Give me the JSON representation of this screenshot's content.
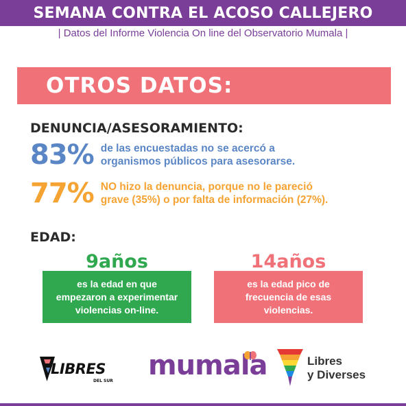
{
  "header": {
    "title": "SEMANA CONTRA EL ACOSO CALLEJERO",
    "subtitle": "| Datos del Informe Violencia On line del Observatorio Mumala |"
  },
  "otros": {
    "title": "OTROS DATOS:"
  },
  "denuncia": {
    "heading": "DENUNCIA/ASESORAMIENTO:",
    "stats": [
      {
        "percent": "83%",
        "line1": "de las encuestadas no se acercó a",
        "line2": "organismos públicos para asesorarse.",
        "color": "#5b86c5"
      },
      {
        "percent": "77%",
        "line1": "NO hizo la denuncia, porque no le pareció",
        "line2": "grave (35%) o por falta de información (27%).",
        "color": "#f5a333"
      }
    ]
  },
  "edad": {
    "heading": "EDAD:",
    "cards": [
      {
        "age": "9años",
        "text": "es la edad en que empezaron a experimentar violencias on-line.",
        "color": "#2fa84f"
      },
      {
        "age": "14años",
        "text": "es la edad pico de frecuencia de esas violencias.",
        "color": "#f07178"
      }
    ]
  },
  "logos": {
    "libres": {
      "name": "LIBRES",
      "sub": "DEL SUR"
    },
    "mumala": {
      "name": "mumala"
    },
    "libres_diverses": {
      "line1": "Libres",
      "line2": "y Diverses"
    }
  },
  "colors": {
    "purple": "#7a3e99",
    "coral": "#f07178",
    "blue": "#5b86c5",
    "orange": "#f5a333",
    "green": "#2fa84f"
  }
}
